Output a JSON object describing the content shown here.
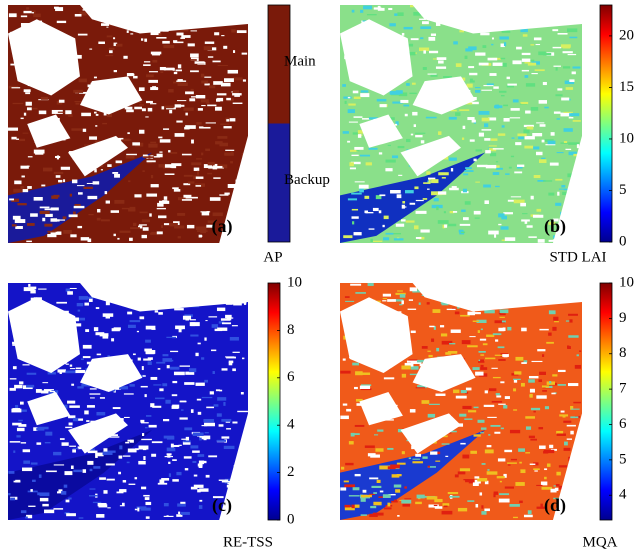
{
  "panels": [
    {
      "label": "(a)",
      "colorbar": {
        "title": "AP",
        "classes": [
          "Main",
          "Backup"
        ]
      }
    },
    {
      "label": "(b)",
      "colorbar": {
        "title": "STD LAI",
        "range": [
          0,
          23
        ],
        "ticks": [
          0,
          5,
          10,
          15,
          20
        ]
      }
    },
    {
      "label": "(c)",
      "colorbar": {
        "title": "RE-TSS",
        "range": [
          0,
          10
        ],
        "ticks": [
          0,
          2,
          4,
          6,
          8,
          10
        ]
      }
    },
    {
      "label": "(d)",
      "colorbar": {
        "title": "MQA",
        "range": [
          3.3,
          10
        ],
        "ticks": [
          4,
          5,
          6,
          7,
          8,
          9,
          10
        ]
      }
    }
  ]
}
